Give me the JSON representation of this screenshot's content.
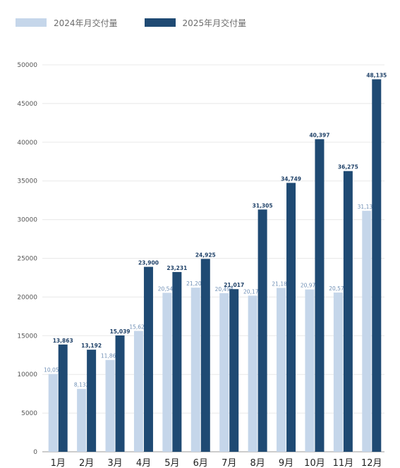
{
  "colors": {
    "series_2024": "#c5d6ea",
    "series_2025": "#1f4a73",
    "grid": "#e8e8e8",
    "axis": "#999999"
  },
  "chart_data": {
    "type": "bar",
    "title": "",
    "xlabel": "",
    "ylabel": "",
    "categories": [
      "1月",
      "2月",
      "3月",
      "4月",
      "5月",
      "6月",
      "7月",
      "8月",
      "9月",
      "10月",
      "11月",
      "12月"
    ],
    "series": [
      {
        "name": "2024年月交付量",
        "values": [
          10055,
          8132,
          11866,
          15620,
          20544,
          21209,
          20498,
          20176,
          21181,
          20976,
          20575,
          31138
        ]
      },
      {
        "name": "2025年月交付量",
        "values": [
          13863,
          13192,
          15039,
          23900,
          23231,
          24925,
          21017,
          31305,
          34749,
          40397,
          36275,
          48135
        ]
      }
    ],
    "ylim": [
      0,
      50000
    ],
    "yticks": [
      0,
      5000,
      10000,
      15000,
      20000,
      25000,
      30000,
      35000,
      40000,
      45000,
      50000
    ],
    "grid": true,
    "legend_position": "top-left"
  }
}
